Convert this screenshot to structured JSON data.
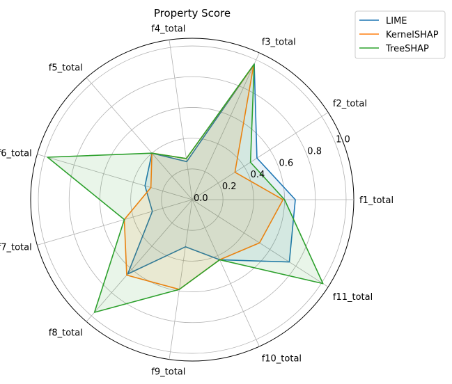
{
  "chart_data": {
    "type": "radar",
    "title": "Property Score",
    "categories": [
      "f1_total",
      "f2_total",
      "f3_total",
      "f4_total",
      "f5_total",
      "f6_total",
      "f7_total",
      "f8_total",
      "f9_total",
      "f10_total",
      "f11_total"
    ],
    "radial_ticks": [
      "0.0",
      "0.2",
      "0.4",
      "0.6",
      "0.8",
      "1.0"
    ],
    "rlim": [
      0,
      1.05
    ],
    "grid": true,
    "legend_position": "top-right",
    "series": [
      {
        "name": "LIME",
        "color": "#1f77b4",
        "values": [
          0.67,
          0.5,
          0.97,
          0.25,
          0.4,
          0.32,
          0.27,
          0.64,
          0.31,
          0.43,
          0.75
        ]
      },
      {
        "name": "KernelSHAP",
        "color": "#ff7f0e",
        "values": [
          0.59,
          0.33,
          0.96,
          0.27,
          0.4,
          0.28,
          0.46,
          0.65,
          0.59,
          0.43,
          0.52
        ]
      },
      {
        "name": "TreeSHAP",
        "color": "#2ca02c",
        "values": [
          0.6,
          0.45,
          0.97,
          0.27,
          0.4,
          0.98,
          0.46,
          0.97,
          0.59,
          0.43,
          1.01
        ]
      }
    ]
  }
}
